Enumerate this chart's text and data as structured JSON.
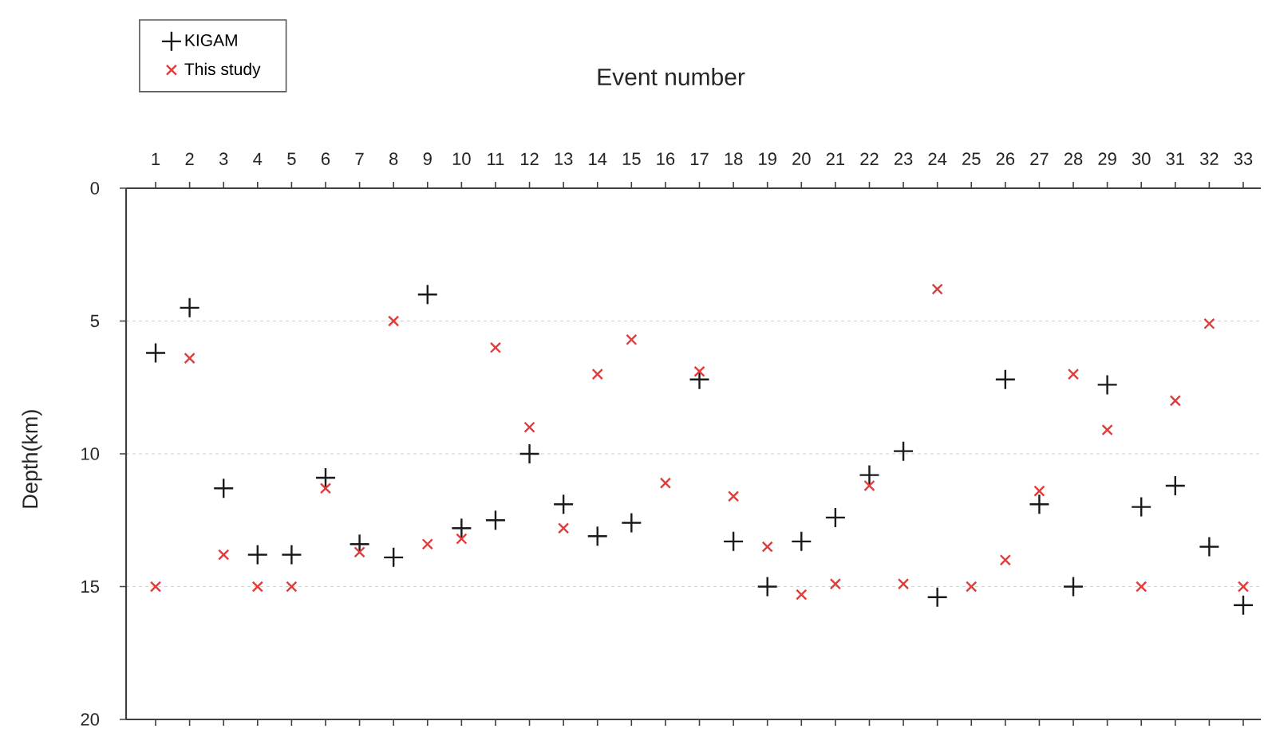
{
  "chart_data": {
    "type": "scatter",
    "xlabel": "Event number",
    "ylabel": "Depth(km)",
    "categories": [
      "1",
      "2",
      "3",
      "4",
      "5",
      "6",
      "7",
      "8",
      "9",
      "10",
      "11",
      "12",
      "13",
      "14",
      "15",
      "16",
      "17",
      "18",
      "19",
      "20",
      "21",
      "22",
      "23",
      "24",
      "25",
      "26",
      "27",
      "28",
      "29",
      "30",
      "31",
      "32",
      "33"
    ],
    "ylim": [
      20,
      0
    ],
    "yticks": [
      0,
      5,
      10,
      15,
      20
    ],
    "grid": "y",
    "legend": "top left",
    "series": [
      {
        "name": "KIGAM",
        "color": "#1a1a1a",
        "marker": "plus",
        "values": [
          6.2,
          4.5,
          11.3,
          13.8,
          13.8,
          10.9,
          13.4,
          13.9,
          4.0,
          12.8,
          12.5,
          10.0,
          11.9,
          13.1,
          12.6,
          null,
          7.2,
          13.3,
          15.0,
          13.3,
          12.4,
          10.8,
          9.9,
          15.4,
          null,
          7.2,
          11.9,
          15.0,
          7.4,
          12.0,
          11.2,
          13.5,
          15.7
        ]
      },
      {
        "name": "This study",
        "color": "#e03c3c",
        "marker": "cross",
        "values": [
          15.0,
          6.4,
          13.8,
          15.0,
          15.0,
          11.3,
          13.7,
          5.0,
          13.4,
          13.2,
          6.0,
          9.0,
          12.8,
          7.0,
          5.7,
          11.1,
          6.9,
          11.6,
          13.5,
          15.3,
          14.9,
          11.2,
          14.9,
          3.8,
          15.0,
          14.0,
          11.4,
          7.0,
          9.1,
          15.0,
          8.0,
          5.1,
          15.0
        ]
      }
    ]
  }
}
